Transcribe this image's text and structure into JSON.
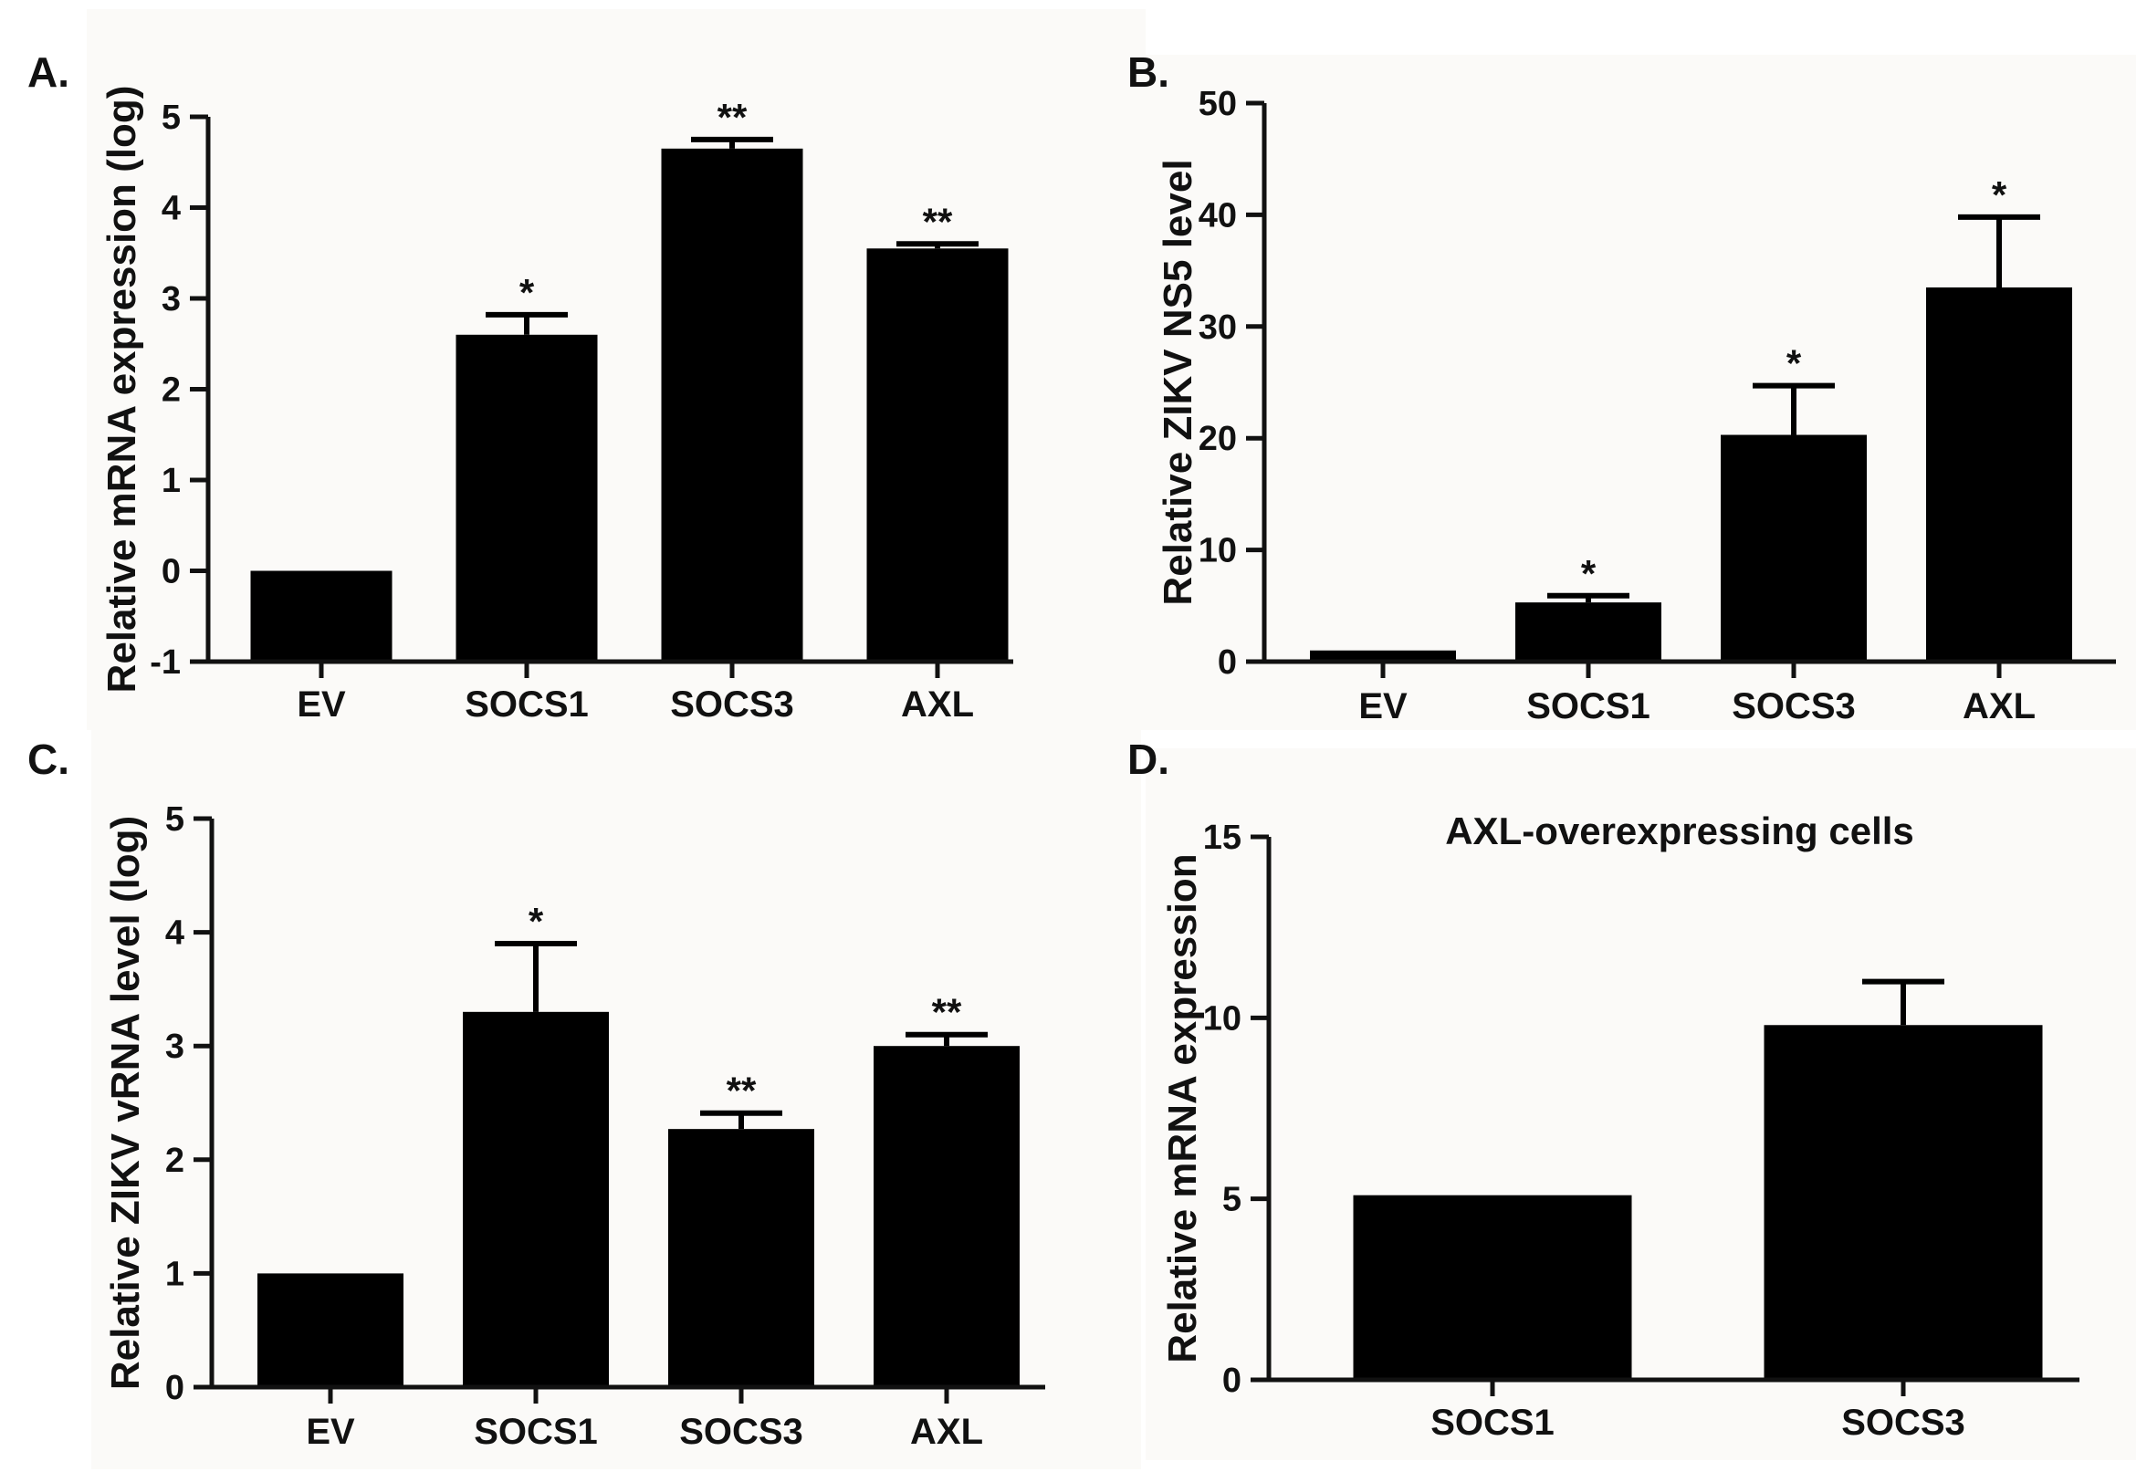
{
  "chart_data": [
    {
      "id": "A",
      "type": "bar",
      "panel_label": "A.",
      "title": "",
      "xlabel": "",
      "ylabel": "Relative mRNA expression (log)",
      "ylim": [
        -1,
        5
      ],
      "yticks": [
        -1,
        0,
        1,
        2,
        3,
        4,
        5
      ],
      "categories": [
        "EV",
        "SOCS1",
        "SOCS3",
        "AXL"
      ],
      "values": [
        0,
        2.6,
        4.65,
        3.55
      ],
      "errors": [
        0,
        0.22,
        0.1,
        0.05
      ],
      "significance": [
        "",
        "*",
        "**",
        "**"
      ],
      "baseline": -1
    },
    {
      "id": "B",
      "type": "bar",
      "panel_label": "B.",
      "title": "",
      "xlabel": "",
      "ylabel": "Relative ZIKV NS5 level",
      "ylim": [
        0,
        50
      ],
      "yticks": [
        0,
        10,
        20,
        30,
        40,
        50
      ],
      "categories": [
        "EV",
        "SOCS1",
        "SOCS3",
        "AXL"
      ],
      "values": [
        1,
        5.3,
        20.3,
        33.5
      ],
      "errors": [
        0,
        0.6,
        4.4,
        6.3
      ],
      "significance": [
        "",
        "*",
        "*",
        "*"
      ],
      "baseline": 0
    },
    {
      "id": "C",
      "type": "bar",
      "panel_label": "C.",
      "title": "",
      "xlabel": "",
      "ylabel": "Relative ZIKV vRNA level (log)",
      "ylim": [
        0,
        5
      ],
      "yticks": [
        0,
        1,
        2,
        3,
        4,
        5
      ],
      "categories": [
        "EV",
        "SOCS1",
        "SOCS3",
        "AXL"
      ],
      "values": [
        1,
        3.3,
        2.27,
        3.0
      ],
      "errors": [
        0,
        0.6,
        0.14,
        0.1
      ],
      "significance": [
        "",
        "*",
        "**",
        "**"
      ],
      "baseline": 0
    },
    {
      "id": "D",
      "type": "bar",
      "panel_label": "D.",
      "title": "AXL-overexpressing cells",
      "xlabel": "",
      "ylabel": "Relative mRNA expression",
      "ylim": [
        0,
        15
      ],
      "yticks": [
        0,
        5,
        10,
        15
      ],
      "categories": [
        "SOCS1",
        "SOCS3"
      ],
      "values": [
        5.1,
        9.8
      ],
      "errors": [
        0,
        1.2
      ],
      "significance": [
        "",
        ""
      ],
      "baseline": 0
    }
  ]
}
